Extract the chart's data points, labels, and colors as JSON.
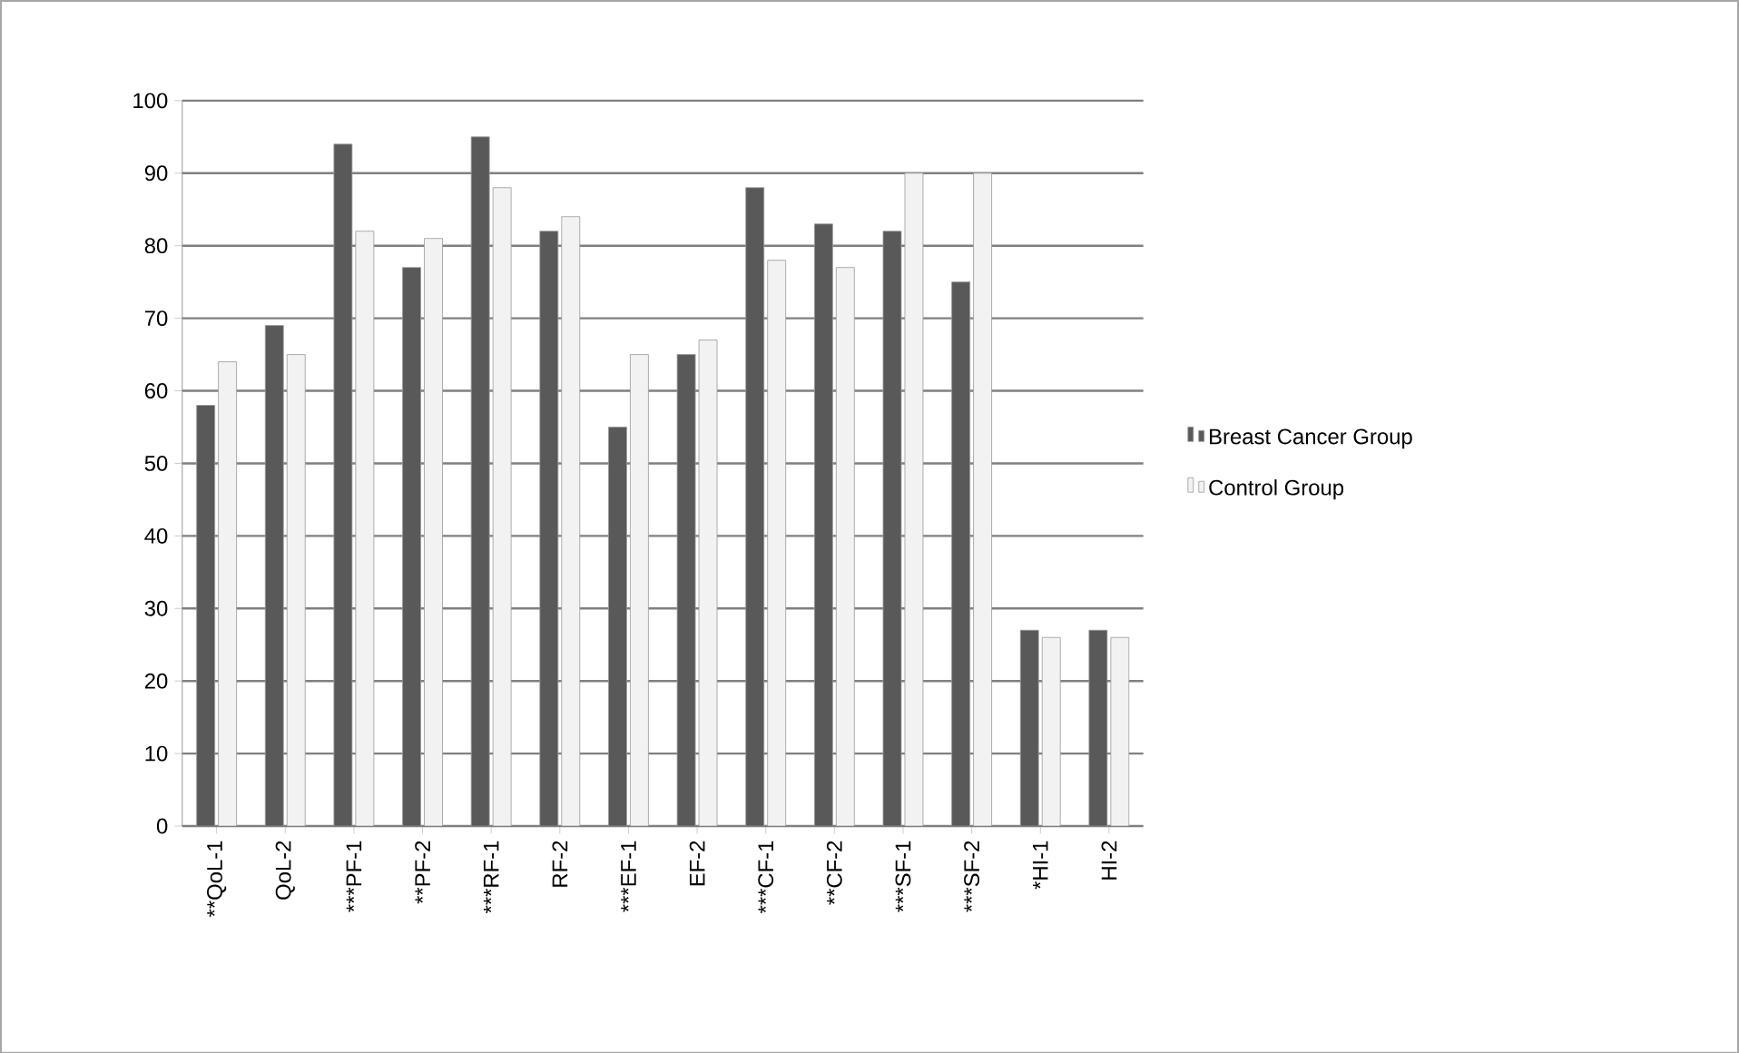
{
  "chart_data": {
    "type": "bar",
    "categories": [
      "**QoL-1",
      "QoL-2",
      "***PF-1",
      "**PF-2",
      "***RF-1",
      "RF-2",
      "***EF-1",
      "EF-2",
      "***CF-1",
      "**CF-2",
      "***SF-1",
      "***SF-2",
      "*HI-1",
      "HI-2"
    ],
    "series": [
      {
        "name": "Breast Cancer  Group",
        "color": "#595959",
        "values": [
          58,
          69,
          94,
          77,
          95,
          82,
          55,
          65,
          88,
          83,
          82,
          75,
          27,
          27
        ]
      },
      {
        "name": "Control  Group",
        "color": "#f2f2f2",
        "values": [
          64,
          65,
          82,
          81,
          88,
          84,
          65,
          67,
          78,
          77,
          90,
          90,
          26,
          26
        ]
      }
    ],
    "ylim": [
      0,
      100
    ],
    "yticks": [
      0,
      10,
      20,
      30,
      40,
      50,
      60,
      70,
      80,
      90,
      100
    ],
    "grid": "y",
    "legend": "right"
  }
}
